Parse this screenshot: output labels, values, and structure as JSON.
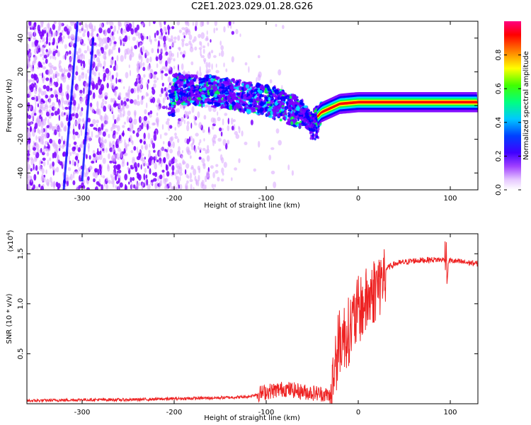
{
  "title": "C2E1.2023.029.01.28.G26",
  "chart_data": [
    {
      "type": "heatmap",
      "xlabel": "Height of straight line (km)",
      "ylabel": "Frequency (Hz)",
      "xlim": [
        -360,
        130
      ],
      "ylim": [
        -50,
        50
      ],
      "xticks": [
        -300,
        -200,
        -100,
        0,
        100
      ],
      "yticks": [
        -40,
        -20,
        0,
        20,
        40
      ],
      "colorbar": {
        "label": "Normalized spectral amplitude",
        "range": [
          0,
          1
        ],
        "ticks": [
          0.0,
          0.2,
          0.4,
          0.6,
          0.8
        ],
        "tick_labels": [
          "0.0",
          "0.2",
          "0.4",
          "0.6",
          "0.8"
        ],
        "colormap": [
          "#ffffff",
          "#d9a6ff",
          "#7b00ff",
          "#0000ff",
          "#00e5ff",
          "#00ff40",
          "#ffff00",
          "#ff8000",
          "#ff0000",
          "#ff0080"
        ]
      },
      "features": {
        "noise_region_x": [
          -360,
          -130
        ],
        "signal_track": [
          {
            "x": -200,
            "y": 10
          },
          {
            "x": -150,
            "y": 8
          },
          {
            "x": -100,
            "y": 3
          },
          {
            "x": -75,
            "y": -2
          },
          {
            "x": -60,
            "y": -5
          },
          {
            "x": -50,
            "y": -10
          },
          {
            "x": -40,
            "y": -4
          },
          {
            "x": -20,
            "y": 1
          },
          {
            "x": 0,
            "y": 2
          },
          {
            "x": 50,
            "y": 2
          },
          {
            "x": 100,
            "y": 2
          },
          {
            "x": 130,
            "y": 2
          }
        ]
      }
    },
    {
      "type": "line",
      "xlabel": "Height of straight line (km)",
      "ylabel": "SNR (10 * v/v)",
      "y_multiplier_label": "(x10",
      "y_multiplier_exp": "4",
      "xlim": [
        -360,
        130
      ],
      "ylim": [
        0,
        1.7
      ],
      "xticks": [
        -300,
        -200,
        -100,
        0,
        100
      ],
      "yticks": [
        0.5,
        1.0,
        1.5
      ],
      "ytick_labels": [
        "0.5",
        "1.0",
        "1.5"
      ],
      "color": "#ee2222",
      "series": [
        {
          "x": [
            -360,
            -300,
            -250,
            -200,
            -150,
            -120,
            -100,
            -80,
            -60,
            -40,
            -30,
            -25,
            -20,
            -15,
            -10,
            -5,
            0,
            5,
            10,
            20,
            30,
            40,
            60,
            80,
            95,
            100,
            110,
            130
          ],
          "y": [
            0.03,
            0.04,
            0.04,
            0.05,
            0.06,
            0.07,
            0.12,
            0.15,
            0.12,
            0.1,
            0.08,
            0.5,
            0.7,
            0.75,
            0.8,
            0.9,
            1.0,
            1.05,
            1.1,
            1.25,
            1.35,
            1.4,
            1.43,
            1.44,
            1.44,
            1.43,
            1.42,
            1.4
          ]
        }
      ]
    }
  ]
}
